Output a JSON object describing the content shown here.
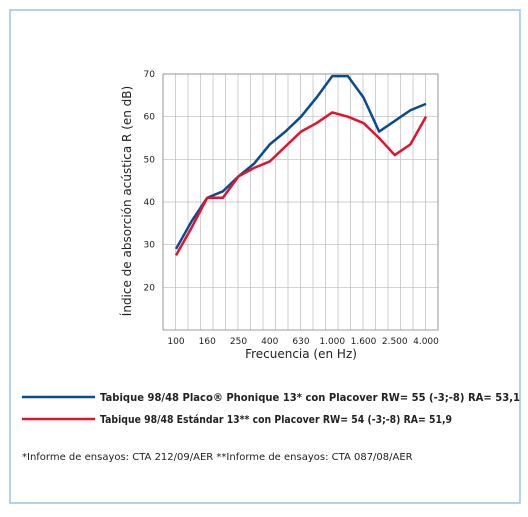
{
  "chart_data": {
    "type": "line",
    "y_label": "Índice de absorción acústica R (en dB)",
    "x_label": "Frecuencia (en Hz)",
    "categories": [
      "100",
      null,
      "160",
      null,
      "250",
      null,
      "400",
      null,
      "630",
      null,
      "1.000",
      null,
      "1.600",
      null,
      "2.500",
      null,
      "4.000"
    ],
    "series": [
      {
        "name": "Tabique 98/48 Placo® Phonique 13* con Placover RW= 55 (-3;-8) RA= 53,1",
        "color": "#0b4a91",
        "values": [
          29,
          35.5,
          41,
          42.5,
          46,
          49,
          53.5,
          56.5,
          60,
          64.5,
          69.5,
          69.5,
          64.5,
          56.5,
          59,
          61.5,
          63
        ]
      },
      {
        "name": "Tabique 98/48 Estándar 13** con Placover RW= 54 (-3;-8) RA= 51,9",
        "color": "#e3122d",
        "values": [
          27.5,
          34,
          41,
          41,
          46,
          48,
          49.5,
          53,
          56.5,
          58.5,
          61,
          60,
          58.5,
          55,
          51,
          53.5,
          60
        ]
      }
    ],
    "ylim": [
      10,
      70
    ],
    "yticks": [
      20,
      30,
      40,
      50,
      60,
      70
    ],
    "grid": true,
    "footnote": "*Informe de ensayos: CTA 212/09/AER  **Informe de ensayos: CTA 087/08/AER"
  }
}
